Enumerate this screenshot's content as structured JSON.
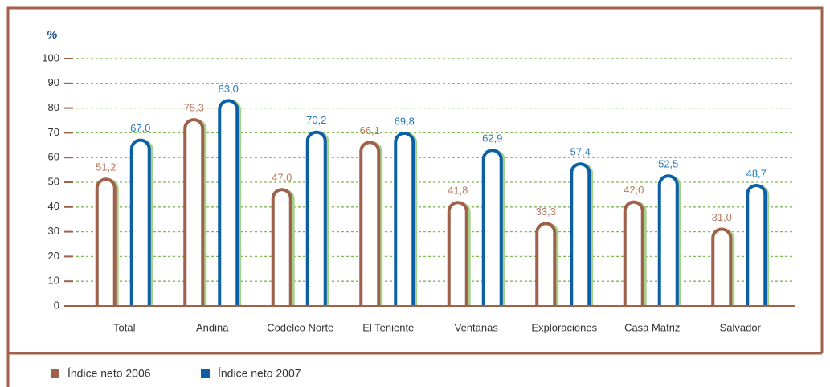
{
  "chart_data": {
    "type": "bar",
    "ylabel": "%",
    "categories": [
      "Total",
      "Andina",
      "Codelco Norte",
      "El Teniente",
      "Ventanas",
      "Exploraciones",
      "Casa Matriz",
      "Salvador"
    ],
    "series": [
      {
        "name": "Índice neto 2006",
        "color": "#a0614a",
        "label_color": "#b8775e",
        "values": [
          51.2,
          75.3,
          47.0,
          66.1,
          41.8,
          33.3,
          42.0,
          31.0
        ],
        "value_labels": [
          "51,2",
          "75,3",
          "47,0",
          "66,1",
          "41,8",
          "33,3",
          "42,0",
          "31,0"
        ]
      },
      {
        "name": "Índice neto 2007",
        "color": "#0b5fa5",
        "label_color": "#2a7ab8",
        "values": [
          67.0,
          83.0,
          70.2,
          69.8,
          62.9,
          57.4,
          52.5,
          48.7
        ],
        "value_labels": [
          "67,0",
          "83,0",
          "70,2",
          "69,8",
          "62,9",
          "57,4",
          "52,5",
          "48,7"
        ]
      }
    ],
    "ylim": [
      0,
      100
    ],
    "yticks": [
      0,
      10,
      20,
      30,
      40,
      50,
      60,
      70,
      80,
      90,
      100
    ],
    "grid": true,
    "grid_color": "#7dbb4e",
    "shadow_color": "#a9d18e",
    "frame_color": "#a0614a"
  }
}
